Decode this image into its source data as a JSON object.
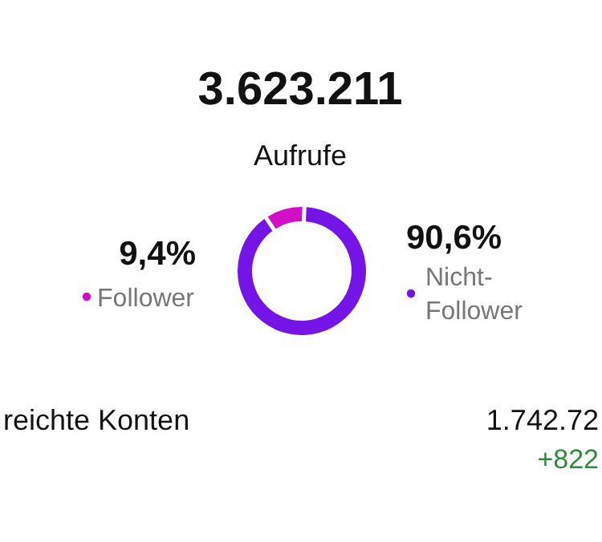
{
  "chart_data": {
    "type": "donut",
    "title": "3.623.211",
    "subtitle": "Aufrufe",
    "categories": [
      "Follower",
      "Nicht-Follower"
    ],
    "values": [
      9.4,
      90.6
    ],
    "colors": [
      "#d10fc8",
      "#7414e6"
    ],
    "value_labels": [
      "9,4%",
      "90,6%"
    ],
    "legend": "right",
    "annotations": [
      "reichte Konten",
      "1.742.72",
      "+822"
    ]
  }
}
